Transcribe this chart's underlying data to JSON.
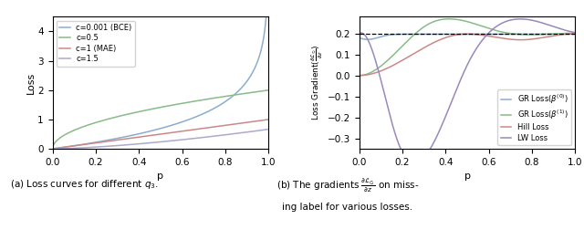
{
  "left_legend": [
    "c=0.001 (BCE)",
    "c=0.5",
    "c=1 (MAE)",
    "c=1.5"
  ],
  "left_colors": [
    "#8aadcf",
    "#88bb88",
    "#cc8888",
    "#aaaacc"
  ],
  "left_xlabel": "p",
  "left_ylabel": "Loss",
  "left_xlim": [
    0.0,
    1.0
  ],
  "left_ylim": [
    0.0,
    4.5
  ],
  "left_yticks": [
    0,
    1,
    2,
    3,
    4
  ],
  "left_xticks": [
    0.0,
    0.2,
    0.4,
    0.6,
    0.8,
    1.0
  ],
  "right_colors": [
    "#8aadcf",
    "#88bb88",
    "#cc8888",
    "#9988bb"
  ],
  "right_xlabel": "p",
  "right_xlim": [
    0.0,
    1.0
  ],
  "right_ylim": [
    -0.35,
    0.28
  ],
  "right_yticks": [
    -0.3,
    -0.2,
    -0.1,
    0.0,
    0.1,
    0.2
  ],
  "right_xticks": [
    0.0,
    0.2,
    0.4,
    0.6,
    0.8,
    1.0
  ],
  "dashed_line_y": 0.2,
  "caption_left": "(a) Loss curves for different $q_3$.",
  "caption_right_1": "(b) The gradients $\\frac{\\partial \\mathcal{L}_{\\varnothing}}{\\partial z}$ on miss-",
  "caption_right_2": "ing label for various losses."
}
